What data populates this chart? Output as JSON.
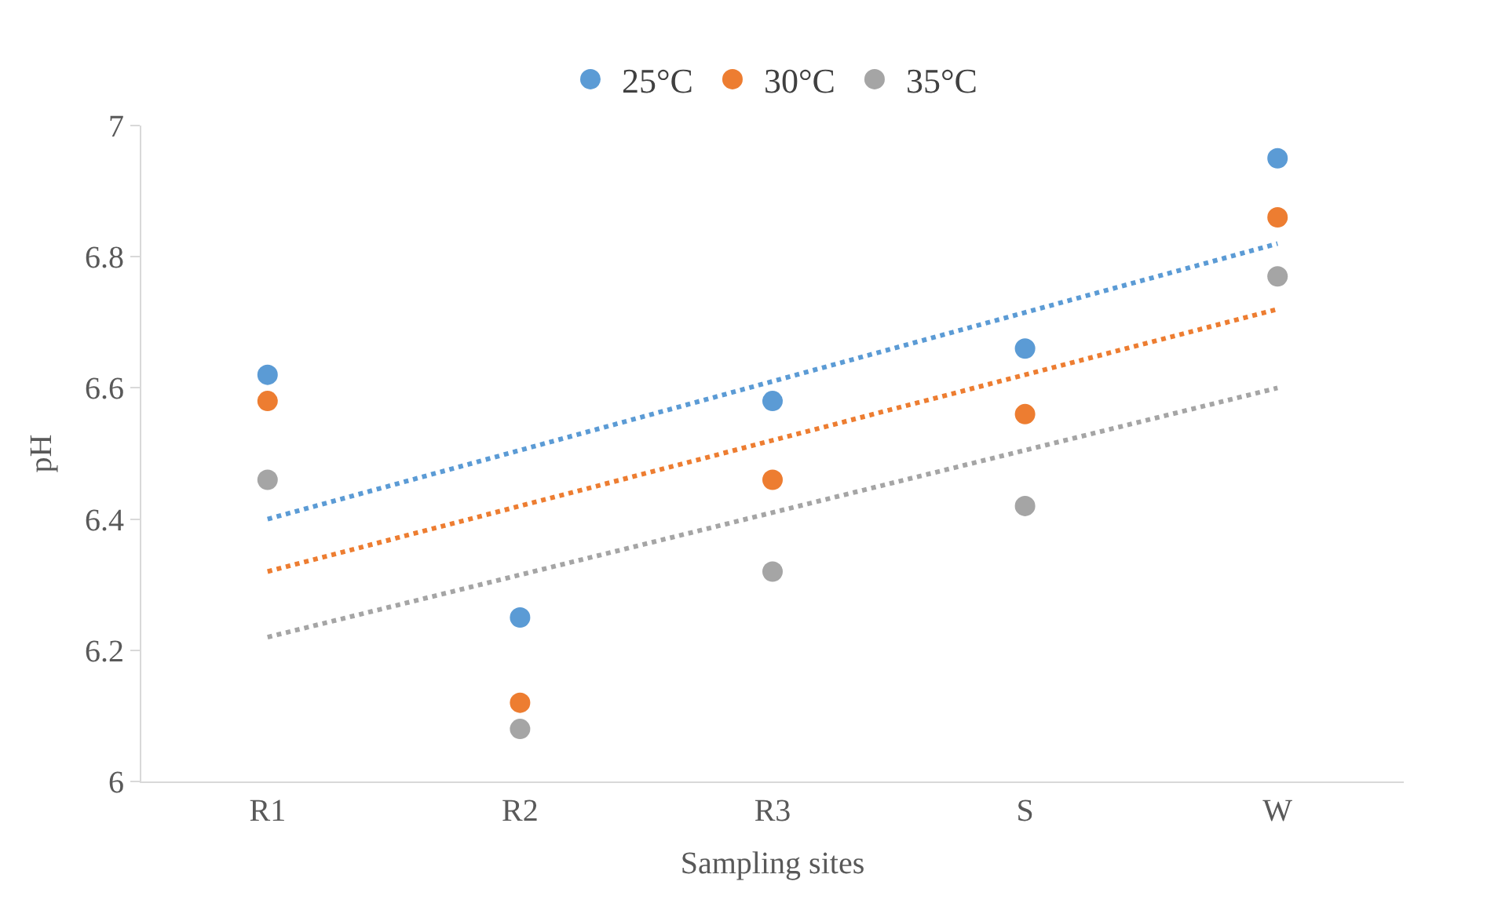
{
  "chart_data": {
    "type": "scatter",
    "xlabel": "Sampling sites",
    "ylabel": "pH",
    "categories": [
      "R1",
      "R2",
      "R3",
      "S",
      "W"
    ],
    "series": [
      {
        "name": "25°C",
        "color": "#5b9bd5",
        "values": [
          6.62,
          6.25,
          6.58,
          6.66,
          6.95
        ]
      },
      {
        "name": "30°C",
        "color": "#ed7d31",
        "values": [
          6.58,
          6.12,
          6.46,
          6.56,
          6.86
        ]
      },
      {
        "name": "35°C",
        "color": "#a5a5a5",
        "values": [
          6.46,
          6.08,
          6.32,
          6.42,
          6.77
        ]
      },
      {
        "type": "line",
        "color": "#5b9bd5",
        "x": [
          "R1",
          "W"
        ],
        "values": [
          6.4,
          6.82
        ],
        "line_style": "dotted",
        "marker": "none"
      },
      {
        "type": "line",
        "color": "#ed7d31",
        "x": [
          "R1",
          "W"
        ],
        "values": [
          6.32,
          6.72
        ],
        "line_style": "dotted",
        "marker": "none"
      },
      {
        "type": "line",
        "color": "#a5a5a5",
        "x": [
          "R1",
          "W"
        ],
        "values": [
          6.22,
          6.6
        ],
        "line_style": "dotted",
        "marker": "none"
      }
    ],
    "marker": "circle",
    "ylim": [
      6,
      7
    ],
    "yticks": [
      6,
      6.2,
      6.4,
      6.6,
      6.8,
      7
    ],
    "grid": false,
    "legend": "top"
  }
}
